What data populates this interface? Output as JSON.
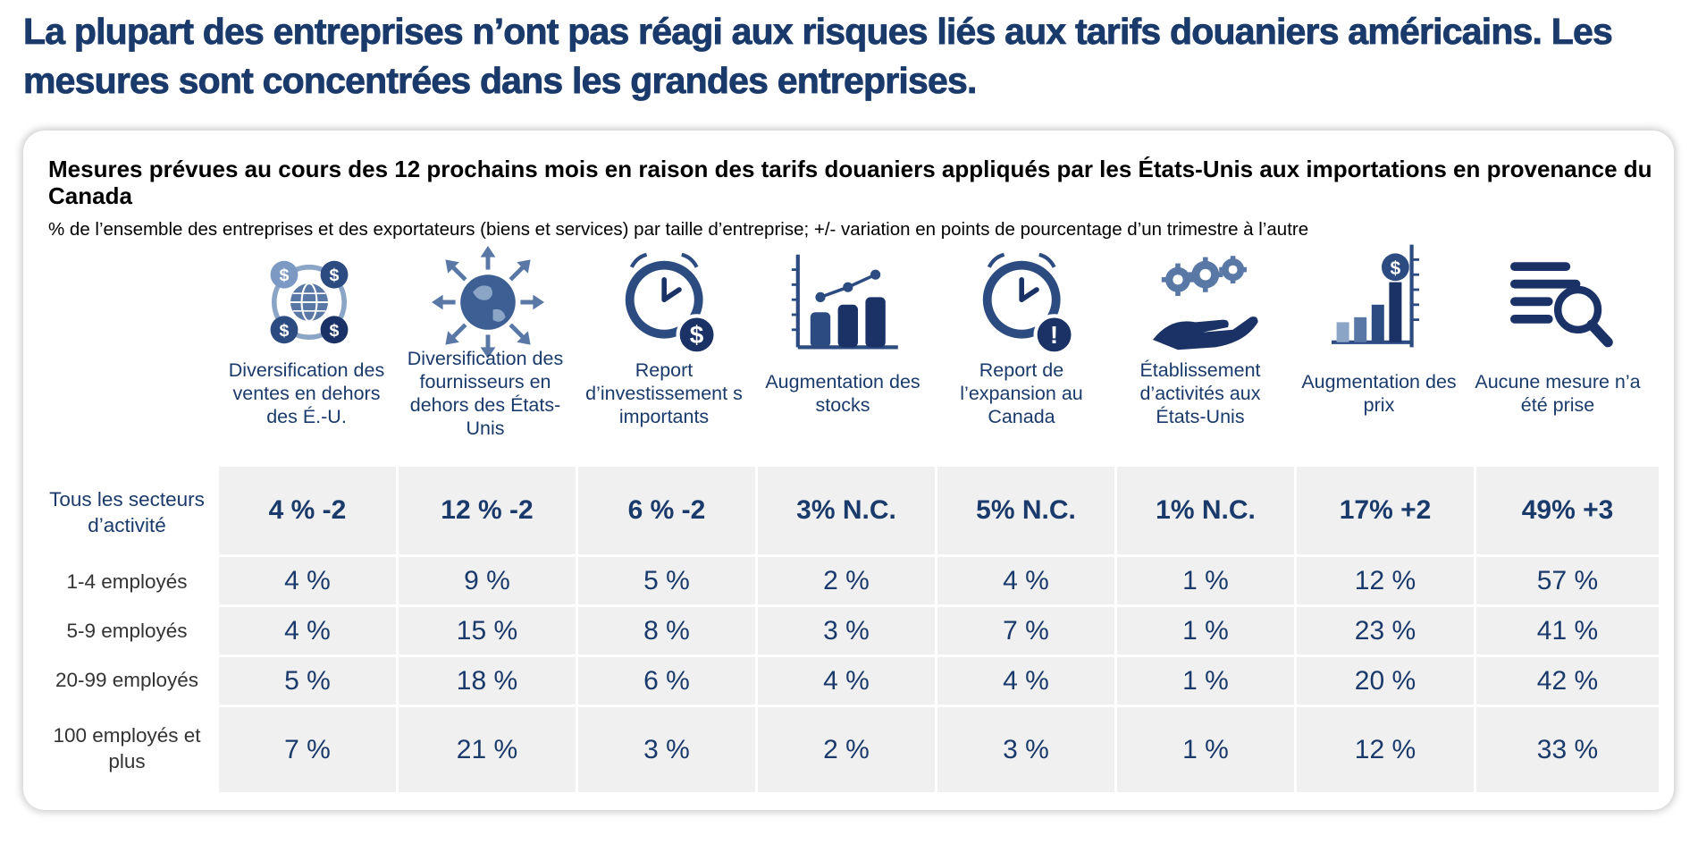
{
  "headline": "La plupart des entreprises n’ont pas réagi aux risques liés aux tarifs douaniers américains. Les mesures sont concentrées dans les grandes entreprises.",
  "colors": {
    "navy": "#1a3a6b",
    "cell_bg": "#f0f0f0",
    "icon_dark": "#1b3266",
    "icon_light": "#8aa5c6"
  },
  "chart_data": {
    "type": "table",
    "title": "Mesures prévues au cours des 12 prochains mois en raison des tarifs douaniers appliqués par les États-Unis aux importations en provenance du Canada",
    "subtitle": "% de l’ensemble des entreprises et des exportateurs (biens et services) par taille d’entreprise; +/- variation en points de pourcentage d’un trimestre à l’autre",
    "columns": [
      {
        "label": "Diversification des ventes en dehors des É.-U.",
        "icon": "globe-dollar-icon"
      },
      {
        "label": "Diversification des fournisseurs en dehors des États-Unis",
        "icon": "globe-arrows-icon"
      },
      {
        "label": "Report d’investissement s importants",
        "icon": "clock-dollar-icon"
      },
      {
        "label": "Augmentation des stocks",
        "icon": "bar-growth-icon"
      },
      {
        "label": "Report de l’expansion au Canada",
        "icon": "clock-alert-icon"
      },
      {
        "label": "Établissement d’activités aux États-Unis",
        "icon": "hand-gears-icon"
      },
      {
        "label": "Augmentation des prix",
        "icon": "price-increase-icon"
      },
      {
        "label": "Aucune mesure n’a été prise",
        "icon": "list-search-icon"
      }
    ],
    "rows": [
      {
        "label": "Tous les secteurs d’activité",
        "total": true,
        "values": [
          4,
          12,
          6,
          3,
          5,
          1,
          17,
          49
        ],
        "display": [
          "4 % -2",
          "12 % -2",
          "6 % -2",
          "3% N.C.",
          "5% N.C.",
          "1% N.C.",
          "17% +2",
          "49% +3"
        ]
      },
      {
        "label": "1-4 employés",
        "total": false,
        "values": [
          4,
          9,
          5,
          2,
          4,
          1,
          12,
          57
        ],
        "display": [
          "4 %",
          "9 %",
          "5 %",
          "2 %",
          "4 %",
          "1 %",
          "12 %",
          "57 %"
        ]
      },
      {
        "label": "5-9 employés",
        "total": false,
        "values": [
          4,
          15,
          8,
          3,
          7,
          1,
          23,
          41
        ],
        "display": [
          "4 %",
          "15 %",
          "8 %",
          "3 %",
          "7 %",
          "1 %",
          "23 %",
          "41 %"
        ]
      },
      {
        "label": "20-99 employés",
        "total": false,
        "values": [
          5,
          18,
          6,
          4,
          4,
          1,
          20,
          42
        ],
        "display": [
          "5 %",
          "18 %",
          "6 %",
          "4 %",
          "4 %",
          "1 %",
          "20 %",
          "42 %"
        ]
      },
      {
        "label": "100 employés et plus",
        "total": false,
        "values": [
          7,
          21,
          3,
          2,
          3,
          1,
          12,
          33
        ],
        "display": [
          "7 %",
          "21 %",
          "3 %",
          "2 %",
          "3 %",
          "1 %",
          "12 %",
          "33 %"
        ]
      }
    ]
  }
}
